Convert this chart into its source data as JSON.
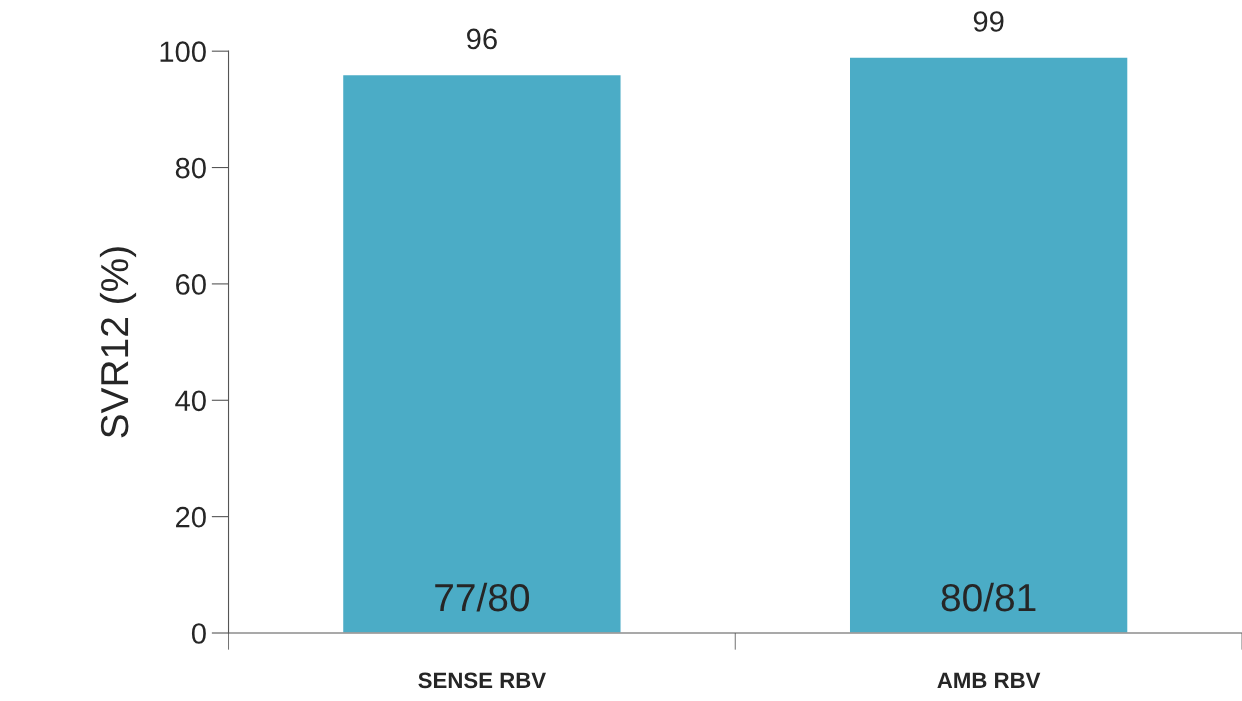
{
  "chart_data": {
    "type": "bar",
    "ylabel": "SVR12 (%)",
    "categories": [
      "SENSE RBV",
      "AMB RBV"
    ],
    "values": [
      96,
      99
    ],
    "color": "#4bacc6",
    "ylim": [
      0,
      100
    ],
    "yticks": [
      0,
      20,
      40,
      60,
      80,
      100
    ],
    "data_labels": true,
    "annotations": [
      "77/80",
      "80/81"
    ]
  }
}
